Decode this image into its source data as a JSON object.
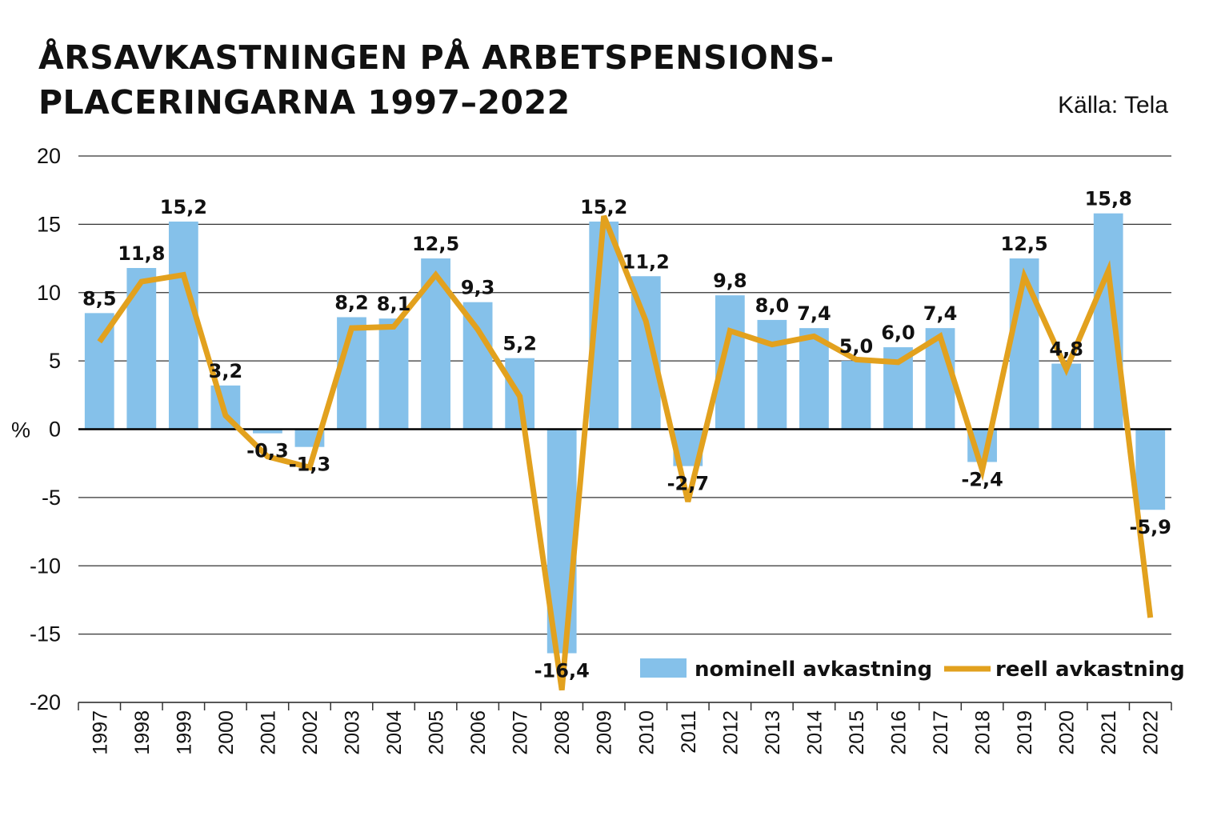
{
  "header": {
    "title_line1": "ÅRSAVKASTNINGEN PÅ ARBETSPENSIONS-",
    "title_line2": "PLACERINGARNA 1997–2022",
    "source": "Källa: Tela"
  },
  "colors": {
    "bar": "#85c1ea",
    "line": "#e2a11e",
    "grid": "#333333",
    "text": "#111111"
  },
  "chart_data": {
    "type": "bar",
    "title": "ÅRSAVKASTNINGEN PÅ ARBETSPENSIONS-PLACERINGARNA 1997–2022",
    "ylabel": "%",
    "xlabel": "",
    "ylim": [
      -20,
      20
    ],
    "yticks": [
      "20",
      "15",
      "10",
      "5",
      "0",
      "-5",
      "-10",
      "-15",
      "-20"
    ],
    "ytick_values": [
      20,
      15,
      10,
      5,
      0,
      -5,
      -10,
      -15,
      -20
    ],
    "grid": true,
    "legend_position": "bottom-right",
    "categories": [
      "1997",
      "1998",
      "1999",
      "2000",
      "2001",
      "2002",
      "2003",
      "2004",
      "2005",
      "2006",
      "2007",
      "2008",
      "2009",
      "2010",
      "2011",
      "2012",
      "2013",
      "2014",
      "2015",
      "2016",
      "2017",
      "2018",
      "2019",
      "2020",
      "2021",
      "2022"
    ],
    "series": [
      {
        "name": "nominell avkastning",
        "type": "bar",
        "values": [
          8.5,
          11.8,
          15.2,
          3.2,
          -0.3,
          -1.3,
          8.2,
          8.1,
          12.5,
          9.3,
          5.2,
          -16.4,
          15.2,
          11.2,
          -2.7,
          9.8,
          8.0,
          7.4,
          5.0,
          6.0,
          7.4,
          -2.4,
          12.5,
          4.8,
          15.8,
          -5.9
        ],
        "labels": [
          "8,5",
          "11,8",
          "15,2",
          "3,2",
          "-0,3",
          "-1,3",
          "8,2",
          "8,1",
          "12,5",
          "9,3",
          "5,2",
          "-16,4",
          "15,2",
          "11,2",
          "-2,7",
          "9,8",
          "8,0",
          "7,4",
          "5,0",
          "6,0",
          "7,4",
          "-2,4",
          "12,5",
          "4,8",
          "15,8",
          "-5,9"
        ]
      },
      {
        "name": "reell avkastning",
        "type": "line",
        "values": [
          6.4,
          10.8,
          11.3,
          1.0,
          -2.0,
          -2.8,
          7.4,
          7.5,
          11.3,
          7.3,
          2.4,
          -19.1,
          15.6,
          7.9,
          -5.3,
          7.2,
          6.2,
          6.8,
          5.1,
          4.9,
          6.8,
          -3.0,
          11.2,
          4.4,
          11.6,
          -13.8
        ]
      }
    ]
  }
}
